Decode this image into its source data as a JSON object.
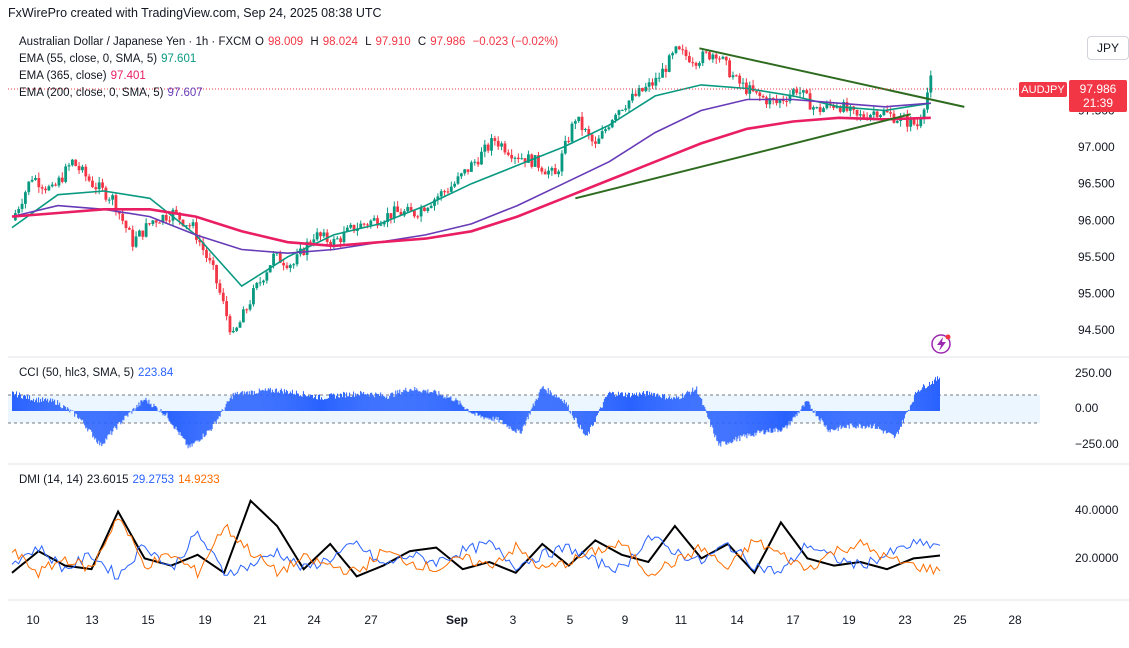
{
  "header": {
    "caption": "FxWirePro created with TradingView.com, Sep 24, 2025 08:38 UTC"
  },
  "currency": "JPY",
  "symbol_line": {
    "name": "Australian Dollar / Japanese Yen · 1h · FXCM",
    "o_label": "O",
    "o": "98.009",
    "h_label": "H",
    "h": "98.024",
    "l_label": "L",
    "l": "97.910",
    "c_label": "C",
    "c": "97.986",
    "chg": "−0.023 (−0.02%)"
  },
  "indicators": [
    {
      "label": "EMA (55, close, 0, SMA, 5)",
      "value": "97.601",
      "color": "#089981"
    },
    {
      "label": "EMA (365, close)",
      "value": "97.401",
      "color": "#e91e63"
    },
    {
      "label": "EMA (200, close, 0, SMA, 5)",
      "value": "97.607",
      "color": "#673ab7"
    }
  ],
  "price_tag": {
    "symbol": "AUDJPY",
    "price": "97.986",
    "countdown": "21:39"
  },
  "cci_legend": {
    "label": "CCI (50, hlc3, SMA, 5)",
    "value": "223.84"
  },
  "dmi_legend": {
    "label": "DMI (14, 14)",
    "adx": "23.6015",
    "plus": "29.2753",
    "minus": "14.9233"
  },
  "colors": {
    "up": "#089981",
    "down": "#f23645",
    "ema55": "#089981",
    "ema200": "#673ab7",
    "ema365": "#e91e63",
    "trend": "#2e6b1f",
    "cci": "#2962ff",
    "adx": "#000000",
    "plus_di": "#2962ff",
    "minus_di": "#ff6d00",
    "price_tag": "#f23645"
  },
  "chart_data": [
    {
      "type": "candlestick",
      "title": "Australian Dollar / Japanese Yen · 1h · FXCM",
      "x_ticks": [
        "10",
        "13",
        "15",
        "19",
        "21",
        "24",
        "27",
        "Sep",
        "3",
        "5",
        "9",
        "11",
        "14",
        "17",
        "19",
        "23",
        "25",
        "28"
      ],
      "y_ticks": [
        "97.500",
        "97.000",
        "96.500",
        "96.000",
        "95.500",
        "95.000",
        "94.500"
      ],
      "ylim": [
        94.2,
        98.6
      ],
      "points": [
        {
          "x": 0,
          "close": 96.0
        },
        {
          "x": 3,
          "close": 96.6
        },
        {
          "x": 6,
          "close": 96.4
        },
        {
          "x": 9,
          "close": 96.8
        },
        {
          "x": 12,
          "close": 96.5
        },
        {
          "x": 15,
          "close": 96.3
        },
        {
          "x": 18,
          "close": 95.7
        },
        {
          "x": 21,
          "close": 96.0
        },
        {
          "x": 24,
          "close": 96.1
        },
        {
          "x": 27,
          "close": 95.9
        },
        {
          "x": 30,
          "close": 95.3
        },
        {
          "x": 33,
          "close": 94.4
        },
        {
          "x": 36,
          "close": 95.0
        },
        {
          "x": 39,
          "close": 95.5
        },
        {
          "x": 42,
          "close": 95.4
        },
        {
          "x": 45,
          "close": 95.8
        },
        {
          "x": 48,
          "close": 95.7
        },
        {
          "x": 51,
          "close": 95.9
        },
        {
          "x": 54,
          "close": 96.0
        },
        {
          "x": 57,
          "close": 96.1
        },
        {
          "x": 60,
          "close": 96.1
        },
        {
          "x": 63,
          "close": 96.3
        },
        {
          "x": 66,
          "close": 96.5
        },
        {
          "x": 69,
          "close": 96.8
        },
        {
          "x": 72,
          "close": 97.1
        },
        {
          "x": 75,
          "close": 96.9
        },
        {
          "x": 78,
          "close": 96.8
        },
        {
          "x": 81,
          "close": 96.6
        },
        {
          "x": 84,
          "close": 97.4
        },
        {
          "x": 87,
          "close": 97.0
        },
        {
          "x": 90,
          "close": 97.5
        },
        {
          "x": 93,
          "close": 97.7
        },
        {
          "x": 96,
          "close": 97.9
        },
        {
          "x": 99,
          "close": 98.3
        },
        {
          "x": 102,
          "close": 98.2
        },
        {
          "x": 105,
          "close": 98.3
        },
        {
          "x": 108,
          "close": 97.9
        },
        {
          "x": 111,
          "close": 97.7
        },
        {
          "x": 114,
          "close": 97.6
        },
        {
          "x": 117,
          "close": 97.8
        },
        {
          "x": 120,
          "close": 97.5
        },
        {
          "x": 123,
          "close": 97.6
        },
        {
          "x": 126,
          "close": 97.4
        },
        {
          "x": 129,
          "close": 97.5
        },
        {
          "x": 132,
          "close": 97.4
        },
        {
          "x": 135,
          "close": 97.3
        },
        {
          "x": 137,
          "close": 97.9
        }
      ],
      "series": [
        {
          "name": "EMA (55, close, 0, SMA, 5)",
          "values": [
            95.9,
            96.35,
            96.4,
            96.3,
            95.8,
            95.1,
            95.5,
            95.8,
            95.95,
            96.2,
            96.5,
            96.75,
            97.0,
            97.3,
            97.7,
            97.85,
            97.8,
            97.7,
            97.55,
            97.5,
            97.6
          ]
        },
        {
          "name": "EMA (200, close, 0, SMA, 5)",
          "values": [
            96.05,
            96.2,
            96.15,
            96.05,
            95.8,
            95.6,
            95.55,
            95.6,
            95.7,
            95.8,
            95.95,
            96.2,
            96.5,
            96.8,
            97.2,
            97.5,
            97.65,
            97.65,
            97.6,
            97.55,
            97.6
          ]
        },
        {
          "name": "EMA (365, close)",
          "values": [
            96.05,
            96.1,
            96.15,
            96.15,
            96.05,
            95.85,
            95.7,
            95.65,
            95.7,
            95.75,
            95.85,
            96.05,
            96.3,
            96.55,
            96.8,
            97.05,
            97.25,
            97.35,
            97.4,
            97.38,
            97.4
          ]
        }
      ],
      "trendlines": [
        {
          "from": [
            102.5,
            98.35
          ],
          "to": [
            142,
            97.55
          ]
        },
        {
          "from": [
            84,
            96.3
          ],
          "to": [
            134,
            97.45
          ]
        }
      ]
    },
    {
      "type": "histogram",
      "title": "CCI (50, hlc3, SMA, 5)",
      "y_ticks": [
        "250.00",
        "0.00",
        "−250.00"
      ],
      "ylim": [
        -330,
        330
      ],
      "values": [
        120,
        80,
        60,
        -40,
        -230,
        -60,
        80,
        -30,
        -250,
        -120,
        110,
        130,
        140,
        120,
        90,
        110,
        120,
        100,
        150,
        130,
        80,
        -30,
        -60,
        -150,
        160,
        70,
        -180,
        120,
        110,
        120,
        80,
        150,
        -230,
        -180,
        -140,
        -120,
        60,
        -130,
        -100,
        -100,
        -180,
        140,
        223.84
      ]
    },
    {
      "type": "line",
      "title": "DMI (14, 14)",
      "y_ticks": [
        "40.0000",
        "20.0000"
      ],
      "ylim": [
        0,
        60
      ],
      "series": [
        {
          "name": "ADX",
          "values": [
            14,
            26,
            18,
            16,
            48,
            22,
            18,
            24,
            14,
            54,
            40,
            16,
            30,
            12,
            18,
            26,
            28,
            16,
            20,
            14,
            30,
            18,
            32,
            24,
            20,
            40,
            22,
            30,
            14,
            42,
            22,
            18,
            20,
            16,
            22,
            23.6
          ]
        },
        {
          "name": "+DI",
          "values": [
            20,
            28,
            16,
            24,
            12,
            30,
            16,
            36,
            14,
            18,
            26,
            16,
            22,
            30,
            18,
            24,
            20,
            26,
            30,
            18,
            24,
            28,
            20,
            16,
            34,
            26,
            20,
            30,
            18,
            14,
            30,
            22,
            18,
            24,
            30,
            29.28
          ]
        },
        {
          "name": "-DI",
          "values": [
            26,
            14,
            22,
            16,
            46,
            18,
            24,
            14,
            40,
            26,
            14,
            22,
            18,
            14,
            26,
            20,
            16,
            22,
            18,
            28,
            16,
            20,
            26,
            30,
            14,
            20,
            28,
            16,
            32,
            24,
            16,
            26,
            30,
            22,
            18,
            14.92
          ]
        }
      ]
    }
  ]
}
